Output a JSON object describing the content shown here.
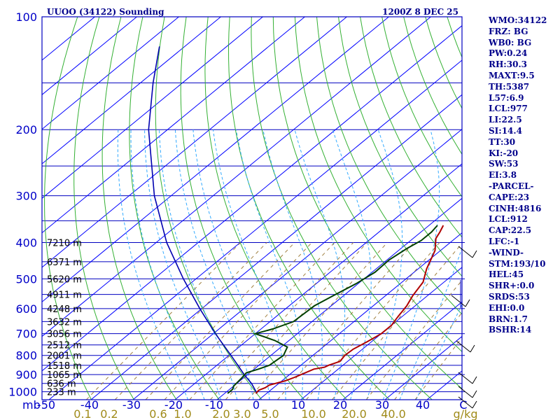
{
  "header": {
    "station": "UUOO (34122) Sounding",
    "time": "1200Z  8 DEC 25"
  },
  "chart_data": {
    "type": "skew-t",
    "pressure_ticks": [
      100,
      200,
      300,
      400,
      500,
      600,
      700,
      800,
      900,
      1000
    ],
    "pressure_range": [
      100,
      1050
    ],
    "axis_unit_label": "mb",
    "temperature_ticks": [
      "-50",
      "-40",
      "-30",
      "-20",
      "-10",
      "0",
      "10",
      "20",
      "30",
      "40",
      "C"
    ],
    "mixing_ratio_labels": [
      "0.1",
      "0.2",
      "0.6",
      "1.0",
      "2.0",
      "3.0",
      "5.0",
      "10.0",
      "20.0",
      "40.0",
      "g/kg"
    ],
    "height_labels": [
      {
        "p": 400,
        "label": "7210 m"
      },
      {
        "p": 450,
        "label": "6371 m"
      },
      {
        "p": 500,
        "label": "5620 m"
      },
      {
        "p": 550,
        "label": "4911 m"
      },
      {
        "p": 600,
        "label": "4248 m"
      },
      {
        "p": 650,
        "label": "3632 m"
      },
      {
        "p": 700,
        "label": "3056 m"
      },
      {
        "p": 750,
        "label": "2512 m"
      },
      {
        "p": 800,
        "label": "2001 m"
      },
      {
        "p": 850,
        "label": "1518 m"
      },
      {
        "p": 900,
        "label": "1065 m"
      },
      {
        "p": 950,
        "label": "636 m"
      },
      {
        "p": 1000,
        "label": "233 m"
      }
    ],
    "temperature_profile": [
      [
        1010,
        -2.6
      ],
      [
        990,
        -2.8
      ],
      [
        975,
        -2.0
      ],
      [
        960,
        -1.8
      ],
      [
        935,
        0.8
      ],
      [
        915,
        2.0
      ],
      [
        895,
        3.0
      ],
      [
        870,
        4.2
      ],
      [
        860,
        6.2
      ],
      [
        850,
        6.6
      ],
      [
        830,
        8.2
      ],
      [
        800,
        7.6
      ],
      [
        770,
        7.8
      ],
      [
        735,
        9.0
      ],
      [
        700,
        10.0
      ],
      [
        665,
        10.0
      ],
      [
        630,
        9.0
      ],
      [
        590,
        8.0
      ],
      [
        555,
        6.5
      ],
      [
        510,
        5.0
      ],
      [
        470,
        2.0
      ],
      [
        420,
        -1.3
      ],
      [
        390,
        -4.6
      ],
      [
        375,
        -5.5
      ],
      [
        360,
        -6.6
      ]
    ],
    "dewpoint_profile": [
      [
        1010,
        -9.3
      ],
      [
        985,
        -9.3
      ],
      [
        965,
        -10.0
      ],
      [
        920,
        -10.4
      ],
      [
        890,
        -10.8
      ],
      [
        870,
        -9.0
      ],
      [
        850,
        -7.5
      ],
      [
        800,
        -7.0
      ],
      [
        760,
        -8.5
      ],
      [
        730,
        -13.4
      ],
      [
        700,
        -20.0
      ],
      [
        680,
        -17.2
      ],
      [
        650,
        -14.4
      ],
      [
        590,
        -14.0
      ],
      [
        555,
        -12.5
      ],
      [
        515,
        -10.5
      ],
      [
        480,
        -9.3
      ],
      [
        445,
        -9.5
      ],
      [
        415,
        -8.6
      ],
      [
        395,
        -7.5
      ],
      [
        375,
        -7.5
      ],
      [
        360,
        -8.0
      ]
    ],
    "parcel_profile": [
      [
        1010,
        -2.3
      ],
      [
        950,
        -6.5
      ],
      [
        900,
        -10.8
      ],
      [
        850,
        -15.0
      ],
      [
        800,
        -19.5
      ],
      [
        700,
        -29.5
      ],
      [
        600,
        -40.5
      ],
      [
        500,
        -53.0
      ],
      [
        400,
        -67.5
      ],
      [
        300,
        -84.0
      ],
      [
        200,
        -104.5
      ],
      [
        150,
        -117.0
      ],
      [
        120,
        -126.0
      ]
    ]
  },
  "indices": [
    "WMO:34122",
    "FRZ: BG",
    "WB0: BG",
    "PW:0.24",
    "RH:30.3",
    "MAXT:9.5",
    "TH:5387",
    "L57:6.9",
    "LCL:977",
    "LI:22.5",
    "SI:14.4",
    "TT:30",
    "KI:-20",
    "SW:53",
    "EI:3.8",
    "-PARCEL-",
    "CAPE:23",
    "CINH:4816",
    "LCL:912",
    "CAP:22.5",
    "LFC:-1",
    "-WIND-",
    "STM:193/10",
    "HEL:45",
    "SHR+:0.0",
    "SRDS:53",
    "EHI:0.0",
    "BRN:1.7",
    "BSHR:14"
  ],
  "colors": {
    "isobar": "#0000c0",
    "frame": "#0000c0",
    "isotherm": "#0000ff",
    "dry_adiabat": "#33b033",
    "moist_adiabat": "#33aaff",
    "mixing_ratio": "#a08040",
    "temperature": "#b00000",
    "dewpoint": "#004000",
    "parcel": "#0000b0",
    "label_text": "#00008b",
    "axis_text": "#0000c8",
    "mix_text": "#a08b1a"
  }
}
